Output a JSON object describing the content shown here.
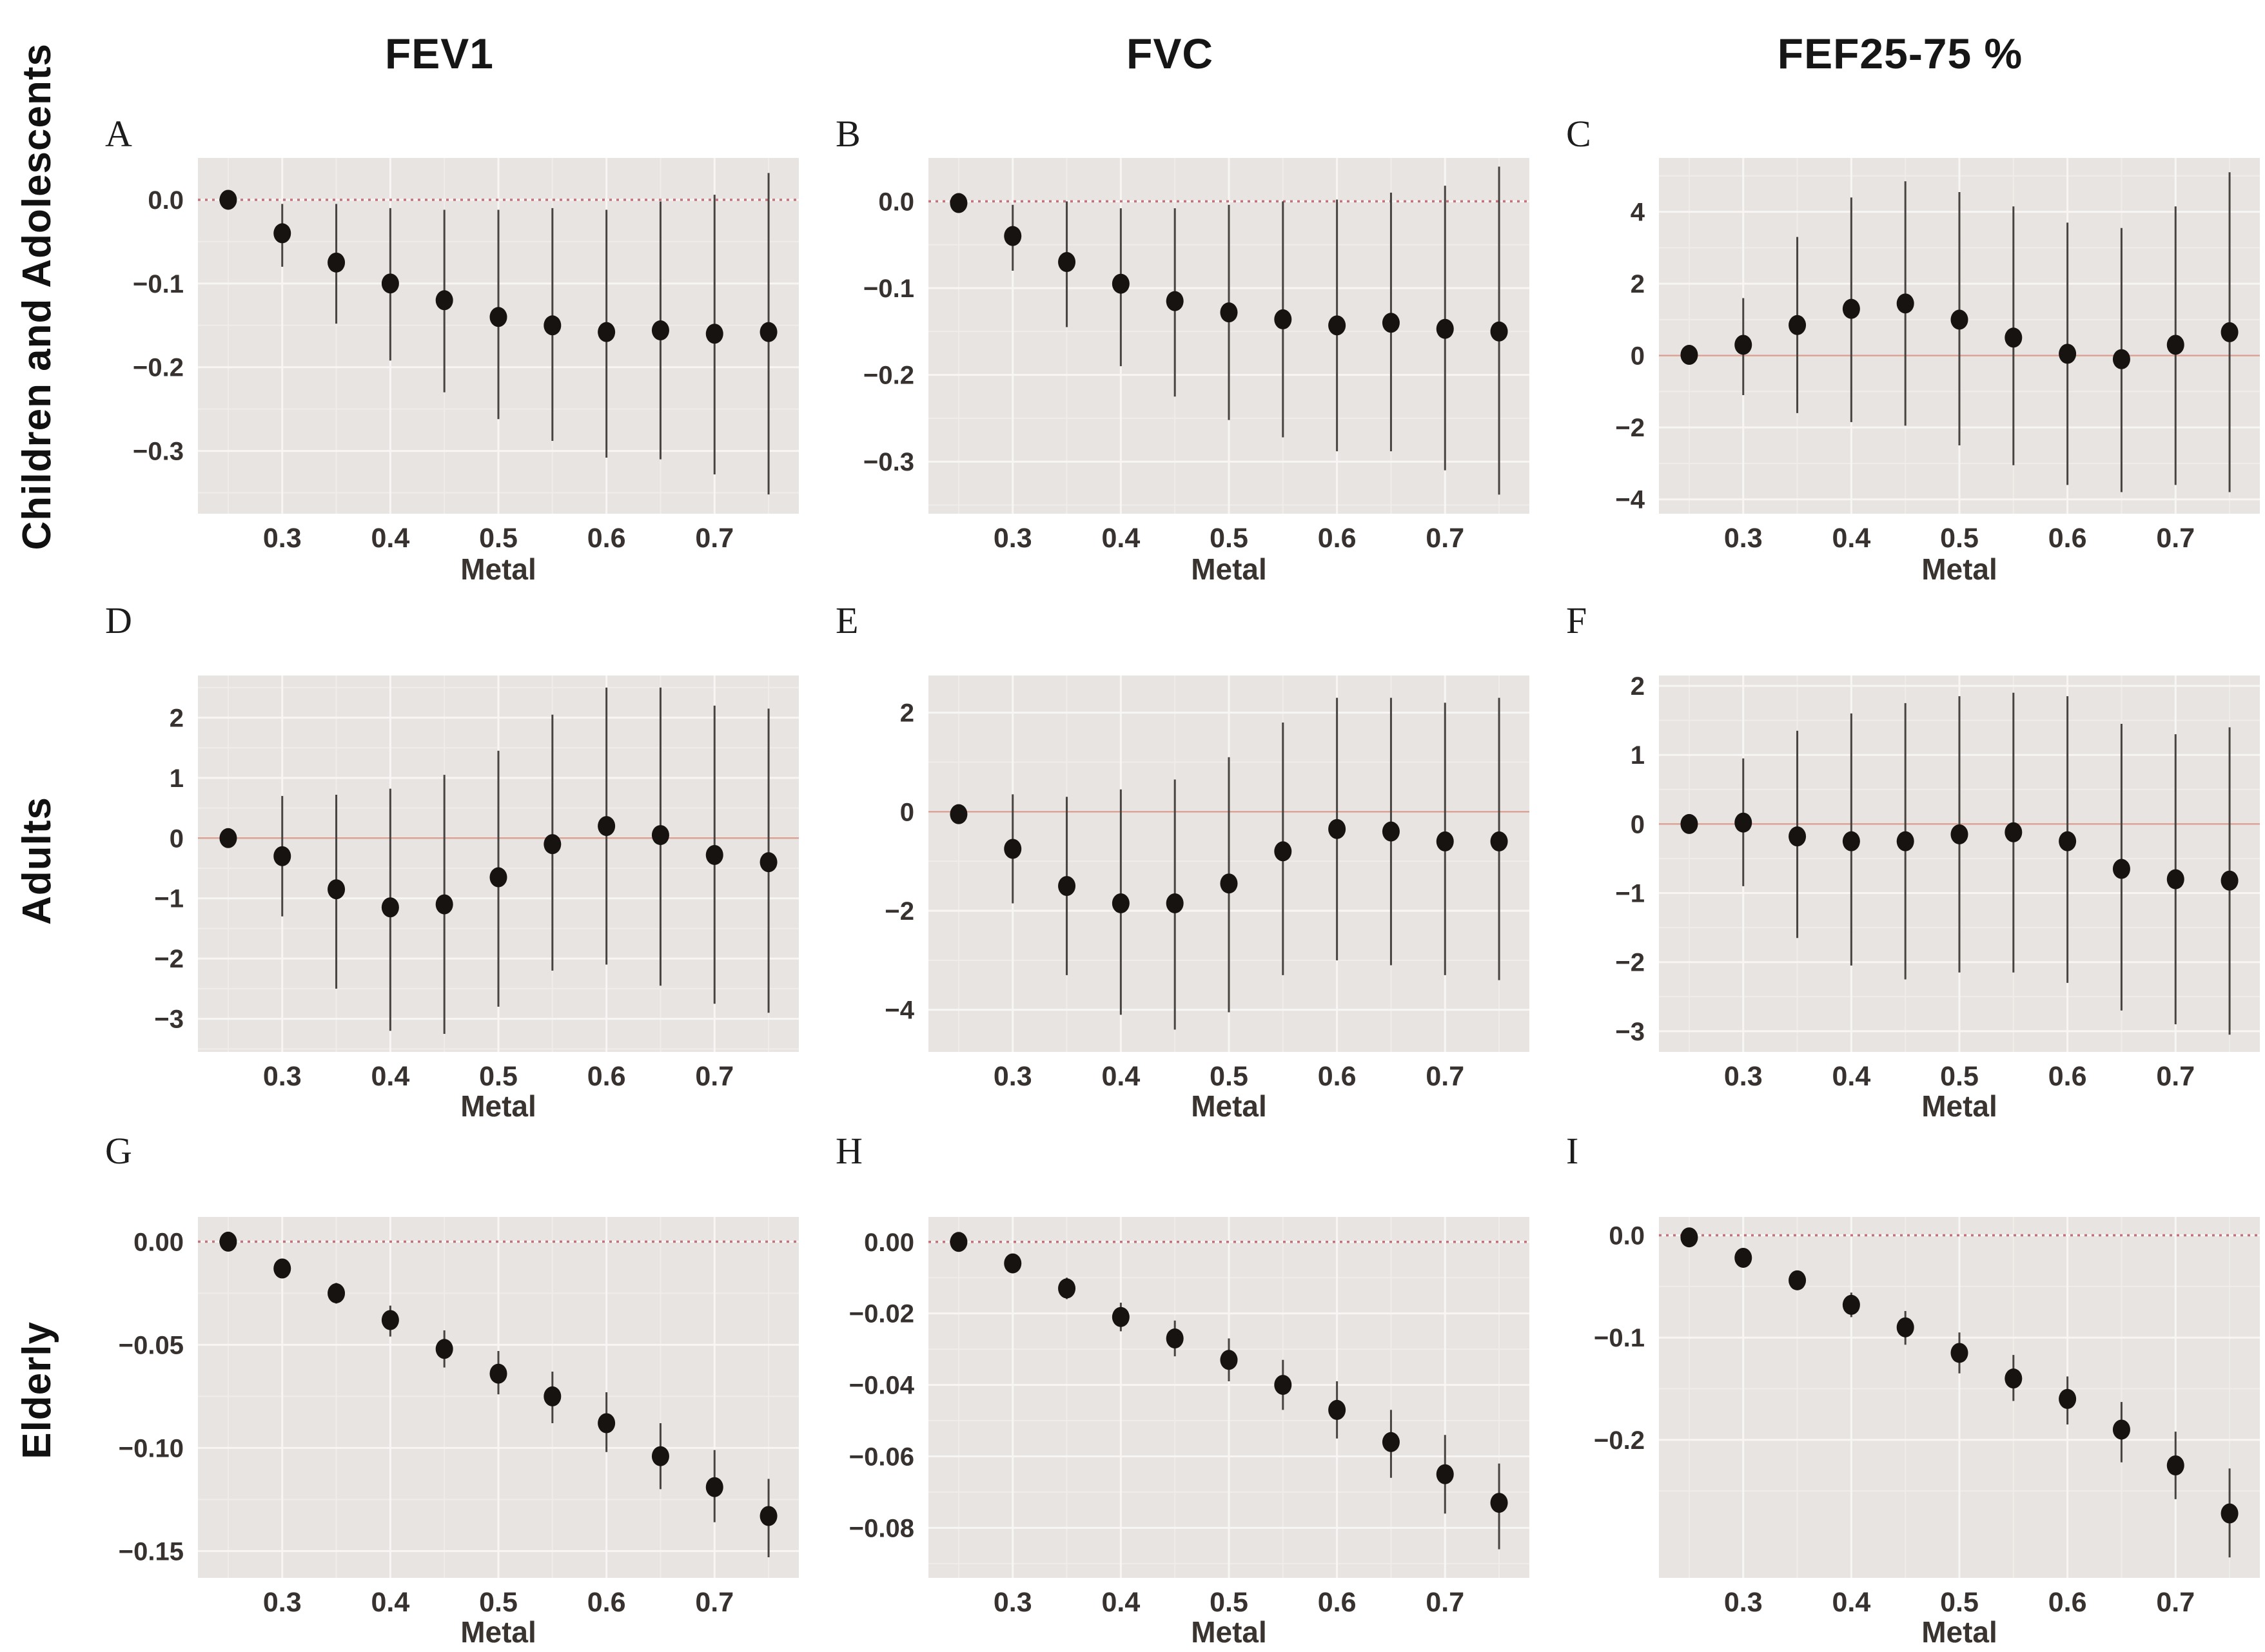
{
  "figure": {
    "columns": [
      "FEV1",
      "FVC",
      "FEF25-75 %"
    ],
    "rows": [
      "Children and Adolescents",
      "Adults",
      "Elderly"
    ],
    "xlabel": "Metal",
    "colors": {
      "page_bg": "#ffffff",
      "plot_bg": "#e8e4e1",
      "grid_major": "#f8f6f4",
      "grid_minor": "#efecea",
      "ref_line_dotted": "#c4737c",
      "ref_line_solid": "#d9a193",
      "error_bar": "#474340",
      "point": "#161311",
      "tick_text": "#37322f"
    }
  },
  "chart_data": [
    {
      "panel": "A",
      "row": "Children and Adolescents",
      "column": "FEV1",
      "type": "scatter",
      "xlabel": "Metal",
      "xlim": [
        0.222,
        0.778
      ],
      "xticks": [
        0.3,
        0.4,
        0.5,
        0.6,
        0.7
      ],
      "xtick_labels": [
        "0.3",
        "0.4",
        "0.5",
        "0.6",
        "0.7"
      ],
      "x": [
        0.25,
        0.3,
        0.35,
        0.4,
        0.45,
        0.5,
        0.55,
        0.6,
        0.65,
        0.7,
        0.75
      ],
      "y": [
        0.0,
        -0.04,
        -0.075,
        -0.1,
        -0.12,
        -0.14,
        -0.15,
        -0.158,
        -0.156,
        -0.16,
        -0.158
      ],
      "ci_low": [
        -0.004,
        -0.08,
        -0.148,
        -0.192,
        -0.23,
        -0.262,
        -0.288,
        -0.308,
        -0.31,
        -0.328,
        -0.352
      ],
      "ci_high": [
        0.003,
        -0.005,
        -0.005,
        -0.01,
        -0.012,
        -0.012,
        -0.01,
        -0.012,
        -0.002,
        0.006,
        0.032
      ],
      "ylim": [
        -0.375,
        0.05
      ],
      "yticks": [
        0.0,
        -0.1,
        -0.2,
        -0.3
      ],
      "ytick_labels": [
        "0.0",
        "−0.1",
        "−0.2",
        "−0.3"
      ],
      "ref_line": 0,
      "ref_style": "dotted"
    },
    {
      "panel": "B",
      "row": "Children and Adolescents",
      "column": "FVC",
      "type": "scatter",
      "xlabel": "Metal",
      "xlim": [
        0.222,
        0.778
      ],
      "xticks": [
        0.3,
        0.4,
        0.5,
        0.6,
        0.7
      ],
      "xtick_labels": [
        "0.3",
        "0.4",
        "0.5",
        "0.6",
        "0.7"
      ],
      "x": [
        0.25,
        0.3,
        0.35,
        0.4,
        0.45,
        0.5,
        0.55,
        0.6,
        0.65,
        0.7,
        0.75
      ],
      "y": [
        -0.002,
        -0.04,
        -0.07,
        -0.095,
        -0.115,
        -0.128,
        -0.136,
        -0.143,
        -0.14,
        -0.147,
        -0.15
      ],
      "ci_low": [
        -0.006,
        -0.08,
        -0.145,
        -0.19,
        -0.225,
        -0.252,
        -0.272,
        -0.288,
        -0.288,
        -0.31,
        -0.338
      ],
      "ci_high": [
        0.002,
        -0.004,
        0.0,
        -0.008,
        -0.008,
        -0.004,
        0.0,
        0.002,
        0.01,
        0.018,
        0.04
      ],
      "ylim": [
        -0.36,
        0.05
      ],
      "yticks": [
        0.0,
        -0.1,
        -0.2,
        -0.3
      ],
      "ytick_labels": [
        "0.0",
        "−0.1",
        "−0.2",
        "−0.3"
      ],
      "ref_line": 0,
      "ref_style": "dotted"
    },
    {
      "panel": "C",
      "row": "Children and Adolescents",
      "column": "FEF25-75 %",
      "type": "scatter",
      "xlabel": "Metal",
      "xlim": [
        0.222,
        0.778
      ],
      "xticks": [
        0.3,
        0.4,
        0.5,
        0.6,
        0.7
      ],
      "xtick_labels": [
        "0.3",
        "0.4",
        "0.5",
        "0.6",
        "0.7"
      ],
      "x": [
        0.25,
        0.3,
        0.35,
        0.4,
        0.45,
        0.5,
        0.55,
        0.6,
        0.65,
        0.7,
        0.75
      ],
      "y": [
        0.02,
        0.3,
        0.85,
        1.3,
        1.45,
        1.0,
        0.5,
        0.05,
        -0.1,
        0.3,
        0.65
      ],
      "ci_low": [
        -0.1,
        -1.1,
        -1.6,
        -1.85,
        -1.95,
        -2.5,
        -3.05,
        -3.6,
        -3.8,
        -3.6,
        -3.8
      ],
      "ci_high": [
        0.12,
        1.6,
        3.3,
        4.4,
        4.85,
        4.55,
        4.15,
        3.7,
        3.55,
        4.15,
        5.1
      ],
      "ylim": [
        -4.4,
        5.5
      ],
      "yticks": [
        4,
        2,
        0,
        -2,
        -4
      ],
      "ytick_labels": [
        "4",
        "2",
        "0",
        "−2",
        "−4"
      ],
      "ref_line": 0,
      "ref_style": "solid"
    },
    {
      "panel": "D",
      "row": "Adults",
      "column": "FEV1",
      "type": "scatter",
      "xlabel": "Metal",
      "xlim": [
        0.222,
        0.778
      ],
      "xticks": [
        0.3,
        0.4,
        0.5,
        0.6,
        0.7
      ],
      "xtick_labels": [
        "0.3",
        "0.4",
        "0.5",
        "0.6",
        "0.7"
      ],
      "x": [
        0.25,
        0.3,
        0.35,
        0.4,
        0.45,
        0.5,
        0.55,
        0.6,
        0.65,
        0.7,
        0.75
      ],
      "y": [
        0.0,
        -0.3,
        -0.85,
        -1.15,
        -1.1,
        -0.65,
        -0.1,
        0.2,
        0.05,
        -0.28,
        -0.4
      ],
      "ci_low": [
        -0.08,
        -1.3,
        -2.5,
        -3.2,
        -3.25,
        -2.8,
        -2.2,
        -2.1,
        -2.45,
        -2.75,
        -2.9
      ],
      "ci_high": [
        0.08,
        0.7,
        0.72,
        0.82,
        1.05,
        1.45,
        2.05,
        2.5,
        2.5,
        2.2,
        2.15
      ],
      "ylim": [
        -3.55,
        2.7
      ],
      "yticks": [
        2,
        1,
        0,
        -1,
        -2,
        -3
      ],
      "ytick_labels": [
        "2",
        "1",
        "0",
        "−1",
        "−2",
        "−3"
      ],
      "ref_line": 0,
      "ref_style": "solid"
    },
    {
      "panel": "E",
      "row": "Adults",
      "column": "FVC",
      "type": "scatter",
      "xlabel": "Metal",
      "xlim": [
        0.222,
        0.778
      ],
      "xticks": [
        0.3,
        0.4,
        0.5,
        0.6,
        0.7
      ],
      "xtick_labels": [
        "0.3",
        "0.4",
        "0.5",
        "0.6",
        "0.7"
      ],
      "x": [
        0.25,
        0.3,
        0.35,
        0.4,
        0.45,
        0.5,
        0.55,
        0.6,
        0.65,
        0.7,
        0.75
      ],
      "y": [
        -0.05,
        -0.75,
        -1.5,
        -1.85,
        -1.85,
        -1.45,
        -0.8,
        -0.35,
        -0.4,
        -0.6,
        -0.6
      ],
      "ci_low": [
        -0.2,
        -1.85,
        -3.3,
        -4.1,
        -4.4,
        -4.05,
        -3.3,
        -3.0,
        -3.1,
        -3.3,
        -3.4
      ],
      "ci_high": [
        0.1,
        0.35,
        0.3,
        0.45,
        0.65,
        1.1,
        1.8,
        2.3,
        2.3,
        2.2,
        2.3
      ],
      "ylim": [
        -4.85,
        2.75
      ],
      "yticks": [
        2,
        0,
        -2,
        -4
      ],
      "ytick_labels": [
        "2",
        "0",
        "−2",
        "−4"
      ],
      "ref_line": 0,
      "ref_style": "solid"
    },
    {
      "panel": "F",
      "row": "Adults",
      "column": "FEF25-75 %",
      "type": "scatter",
      "xlabel": "Metal",
      "xlim": [
        0.222,
        0.778
      ],
      "xticks": [
        0.3,
        0.4,
        0.5,
        0.6,
        0.7
      ],
      "xtick_labels": [
        "0.3",
        "0.4",
        "0.5",
        "0.6",
        "0.7"
      ],
      "x": [
        0.25,
        0.3,
        0.35,
        0.4,
        0.45,
        0.5,
        0.55,
        0.6,
        0.65,
        0.7,
        0.75
      ],
      "y": [
        0.0,
        0.02,
        -0.18,
        -0.25,
        -0.25,
        -0.15,
        -0.12,
        -0.25,
        -0.65,
        -0.8,
        -0.82
      ],
      "ci_low": [
        -0.1,
        -0.9,
        -1.65,
        -2.05,
        -2.25,
        -2.15,
        -2.15,
        -2.3,
        -2.7,
        -2.9,
        -3.05
      ],
      "ci_high": [
        0.1,
        0.95,
        1.35,
        1.6,
        1.75,
        1.85,
        1.9,
        1.85,
        1.45,
        1.3,
        1.4
      ],
      "ylim": [
        -3.3,
        2.15
      ],
      "yticks": [
        2,
        1,
        0,
        -1,
        -2,
        -3
      ],
      "ytick_labels": [
        "2",
        "1",
        "0",
        "−1",
        "−2",
        "−3"
      ],
      "ref_line": 0,
      "ref_style": "solid"
    },
    {
      "panel": "G",
      "row": "Elderly",
      "column": "FEV1",
      "type": "scatter",
      "xlabel": "Metal",
      "xlim": [
        0.222,
        0.778
      ],
      "xticks": [
        0.3,
        0.4,
        0.5,
        0.6,
        0.7
      ],
      "xtick_labels": [
        "0.3",
        "0.4",
        "0.5",
        "0.6",
        "0.7"
      ],
      "x": [
        0.25,
        0.3,
        0.35,
        0.4,
        0.45,
        0.5,
        0.55,
        0.6,
        0.65,
        0.7,
        0.75
      ],
      "y": [
        0.0,
        -0.013,
        -0.025,
        -0.038,
        -0.052,
        -0.064,
        -0.075,
        -0.088,
        -0.104,
        -0.119,
        -0.133
      ],
      "ci_low": [
        -0.001,
        -0.016,
        -0.03,
        -0.046,
        -0.061,
        -0.074,
        -0.088,
        -0.102,
        -0.12,
        -0.136,
        -0.153
      ],
      "ci_high": [
        0.001,
        -0.01,
        -0.02,
        -0.031,
        -0.043,
        -0.053,
        -0.063,
        -0.073,
        -0.088,
        -0.101,
        -0.115
      ],
      "ylim": [
        -0.163,
        0.012
      ],
      "yticks": [
        0.0,
        -0.05,
        -0.1,
        -0.15
      ],
      "ytick_labels": [
        "0.00",
        "−0.05",
        "−0.10",
        "−0.15"
      ],
      "ref_line": 0,
      "ref_style": "dotted"
    },
    {
      "panel": "H",
      "row": "Elderly",
      "column": "FVC",
      "type": "scatter",
      "xlabel": "Metal",
      "xlim": [
        0.222,
        0.778
      ],
      "xticks": [
        0.3,
        0.4,
        0.5,
        0.6,
        0.7
      ],
      "xtick_labels": [
        "0.3",
        "0.4",
        "0.5",
        "0.6",
        "0.7"
      ],
      "x": [
        0.25,
        0.3,
        0.35,
        0.4,
        0.45,
        0.5,
        0.55,
        0.6,
        0.65,
        0.7,
        0.75
      ],
      "y": [
        0.0,
        -0.006,
        -0.013,
        -0.021,
        -0.027,
        -0.033,
        -0.04,
        -0.047,
        -0.056,
        -0.065,
        -0.073
      ],
      "ci_low": [
        -0.001,
        -0.008,
        -0.016,
        -0.025,
        -0.032,
        -0.039,
        -0.047,
        -0.055,
        -0.066,
        -0.076,
        -0.086
      ],
      "ci_high": [
        0.001,
        -0.005,
        -0.01,
        -0.017,
        -0.022,
        -0.027,
        -0.033,
        -0.039,
        -0.047,
        -0.054,
        -0.062
      ],
      "ylim": [
        -0.094,
        0.007
      ],
      "yticks": [
        0.0,
        -0.02,
        -0.04,
        -0.06,
        -0.08
      ],
      "ytick_labels": [
        "0.00",
        "−0.02",
        "−0.04",
        "−0.06",
        "−0.08"
      ],
      "ref_line": 0,
      "ref_style": "dotted"
    },
    {
      "panel": "I",
      "row": "Elderly",
      "column": "FEF25-75 %",
      "type": "scatter",
      "xlabel": "Metal",
      "xlim": [
        0.222,
        0.778
      ],
      "xticks": [
        0.3,
        0.4,
        0.5,
        0.6,
        0.7
      ],
      "xtick_labels": [
        "0.3",
        "0.4",
        "0.5",
        "0.6",
        "0.7"
      ],
      "x": [
        0.25,
        0.3,
        0.35,
        0.4,
        0.45,
        0.5,
        0.55,
        0.6,
        0.65,
        0.7,
        0.75
      ],
      "y": [
        -0.002,
        -0.022,
        -0.044,
        -0.068,
        -0.09,
        -0.115,
        -0.14,
        -0.16,
        -0.19,
        -0.225,
        -0.272
      ],
      "ci_low": [
        -0.004,
        -0.028,
        -0.052,
        -0.08,
        -0.107,
        -0.135,
        -0.162,
        -0.185,
        -0.222,
        -0.258,
        -0.315
      ],
      "ci_high": [
        0.0,
        -0.017,
        -0.036,
        -0.056,
        -0.074,
        -0.095,
        -0.117,
        -0.138,
        -0.163,
        -0.192,
        -0.228
      ],
      "ylim": [
        -0.335,
        0.018
      ],
      "yticks": [
        0.0,
        -0.1,
        -0.2
      ],
      "ytick_labels": [
        "0.0",
        "−0.1",
        "−0.2"
      ],
      "ref_line": 0,
      "ref_style": "dotted"
    }
  ]
}
